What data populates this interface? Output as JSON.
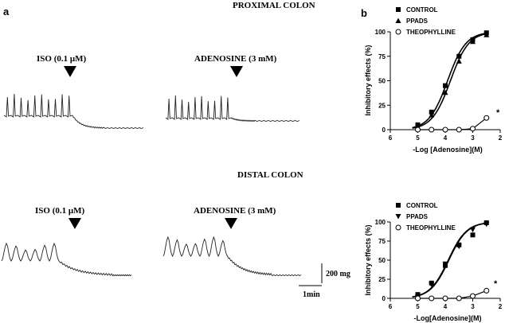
{
  "figure": {
    "panel_a_letter": "a",
    "panel_b_letter": "b",
    "scale_bar_vertical": "200 mg",
    "scale_bar_horizontal": "1min"
  },
  "traces": [
    {
      "title": "PROXIMAL COLON",
      "left_label": "ISO (0.1 μM)",
      "right_label": "ADENOSINE (3 mM)"
    },
    {
      "title": "DISTAL COLON",
      "left_label": "ISO (0.1 μM)",
      "right_label": "ADENOSINE (3 mM)"
    }
  ],
  "chart_data": [
    {
      "type": "line",
      "panel": "proximal",
      "xlabel": "-Log [Adenosine](M)",
      "ylabel": "Inhibitory effects (%)",
      "xlim": [
        6,
        2
      ],
      "ylim": [
        0,
        100
      ],
      "xticks": [
        "6",
        "5",
        "4",
        "3",
        "2"
      ],
      "yticks": [
        "0",
        "25",
        "50",
        "75",
        "100"
      ],
      "legend_position": "top-left",
      "annotation": "*",
      "series": [
        {
          "name": "CONTROL",
          "marker": "square",
          "x": [
            5,
            4.5,
            4,
            3.5,
            3,
            2.5
          ],
          "y": [
            5,
            18,
            45,
            75,
            92,
            99
          ]
        },
        {
          "name": "PPADS",
          "marker": "triangle-up",
          "x": [
            5,
            4.5,
            4,
            3.5,
            3,
            2.5
          ],
          "y": [
            3,
            15,
            38,
            70,
            90,
            97
          ]
        },
        {
          "name": "THEOPHYLLINE",
          "marker": "circle",
          "x": [
            5,
            4.5,
            4,
            3.5,
            3,
            2.5
          ],
          "y": [
            0,
            0,
            0,
            0,
            1,
            12
          ]
        }
      ]
    },
    {
      "type": "line",
      "panel": "distal",
      "xlabel": "-Log[Adenosine](M)",
      "ylabel": "Inhibitory effects (%)",
      "xlim": [
        6,
        2
      ],
      "ylim": [
        0,
        100
      ],
      "xticks": [
        "6",
        "5",
        "4",
        "3",
        "2"
      ],
      "yticks": [
        "0",
        "25",
        "50",
        "75",
        "100"
      ],
      "legend_position": "top-left",
      "annotation": "*",
      "series": [
        {
          "name": "CONTROL",
          "marker": "square",
          "x": [
            5,
            4.5,
            4,
            3.5,
            3,
            2.5
          ],
          "y": [
            5,
            20,
            43,
            70,
            83,
            99
          ]
        },
        {
          "name": "PPADS",
          "marker": "triangle-down",
          "x": [
            5,
            4.5,
            4,
            3.5,
            3,
            2.5
          ],
          "y": [
            2,
            18,
            45,
            68,
            90,
            97
          ]
        },
        {
          "name": "THEOPHYLLINE",
          "marker": "circle",
          "x": [
            5,
            4.5,
            4,
            3.5,
            3,
            2.5
          ],
          "y": [
            0,
            0,
            0,
            0,
            3,
            10
          ]
        }
      ]
    }
  ]
}
